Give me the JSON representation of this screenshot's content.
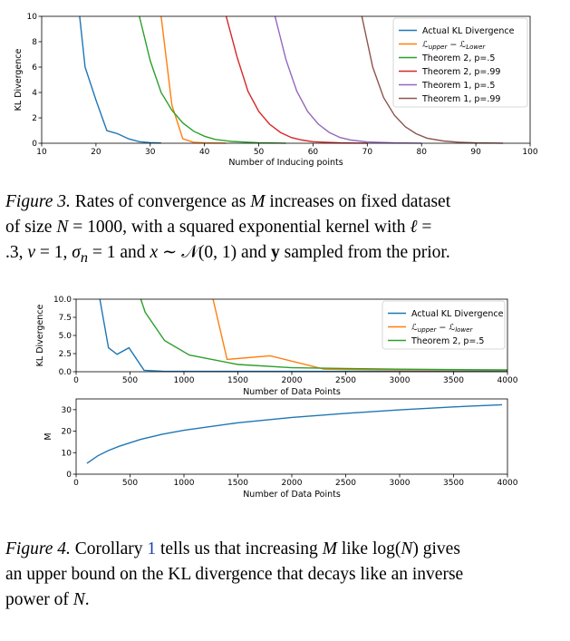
{
  "chart_data": [
    {
      "type": "line",
      "xlabel": "Number of Inducing points",
      "ylabel": "KL Divergence",
      "xlim": [
        10,
        100
      ],
      "ylim": [
        0,
        10
      ],
      "xticks": [
        10,
        20,
        30,
        40,
        50,
        60,
        70,
        80,
        90,
        100
      ],
      "yticks": [
        0,
        2,
        4,
        6,
        8,
        10
      ],
      "legend_position": "top-right",
      "series": [
        {
          "name": "Actual KL Divergence",
          "color": "#1f77b4",
          "x": [
            17,
            18,
            20,
            22,
            24,
            26,
            28,
            30,
            32
          ],
          "y": [
            10,
            6.0,
            3.4,
            1.0,
            0.75,
            0.35,
            0.12,
            0.05,
            0.02
          ]
        },
        {
          "name": "$\\mathcal{L}_{upper} - \\mathcal{L}_{Lower}$",
          "color": "#ff7f0e",
          "x": [
            32,
            34,
            36,
            38,
            40,
            44
          ],
          "y": [
            10,
            3.0,
            0.35,
            0.08,
            0.03,
            0.01
          ]
        },
        {
          "name": "Theorem 2, p=.5",
          "color": "#2ca02c",
          "x": [
            28,
            30,
            32,
            34,
            36,
            38,
            40,
            42,
            45,
            50,
            55
          ],
          "y": [
            10,
            6.5,
            4.0,
            2.6,
            1.6,
            0.95,
            0.55,
            0.3,
            0.14,
            0.04,
            0.01
          ]
        },
        {
          "name": "Theorem 2, p=.99",
          "color": "#d62728",
          "x": [
            44,
            46,
            48,
            50,
            52,
            54,
            56,
            58,
            60,
            65,
            70
          ],
          "y": [
            10,
            6.8,
            4.1,
            2.5,
            1.5,
            0.85,
            0.45,
            0.25,
            0.12,
            0.03,
            0.01
          ]
        },
        {
          "name": "Theorem 1, p=.5",
          "color": "#9467bd",
          "x": [
            53,
            55,
            57,
            59,
            61,
            63,
            65,
            67,
            70,
            75,
            80
          ],
          "y": [
            10,
            6.6,
            4.1,
            2.5,
            1.5,
            0.85,
            0.45,
            0.25,
            0.1,
            0.03,
            0.01
          ]
        },
        {
          "name": "Theorem 1, p=.99",
          "color": "#8c564b",
          "x": [
            69,
            71,
            73,
            75,
            77,
            79,
            81,
            84,
            87,
            90,
            95
          ],
          "y": [
            10,
            6.0,
            3.6,
            2.2,
            1.3,
            0.75,
            0.4,
            0.18,
            0.08,
            0.03,
            0.01
          ]
        }
      ]
    },
    {
      "type": "line",
      "xlabel": "Number of Data Points",
      "ylabel": "KL Divergence",
      "xlim": [
        0,
        4000
      ],
      "ylim": [
        0,
        10
      ],
      "xticks": [
        0,
        500,
        1000,
        1500,
        2000,
        2500,
        3000,
        3500,
        4000
      ],
      "yticks": [
        0.0,
        2.5,
        5.0,
        7.5,
        10.0
      ],
      "ytick_labels": [
        "0.0",
        "2.5",
        "5.0",
        "7.5",
        "10.0"
      ],
      "legend_position": "top-right",
      "series": [
        {
          "name": "Actual KL Divergence",
          "color": "#1f77b4",
          "x": [
            220,
            300,
            380,
            490,
            630,
            800,
            1500,
            2500,
            4000
          ],
          "y": [
            10,
            3.3,
            2.4,
            3.3,
            0.2,
            0.08,
            0.05,
            0.05,
            0.05
          ]
        },
        {
          "name": "$\\mathcal{L}_{upper} - \\mathcal{L}_{lower}$",
          "color": "#ff7f0e",
          "x": [
            1270,
            1400,
            1800,
            2300,
            2500,
            3000,
            4000
          ],
          "y": [
            10,
            1.7,
            2.2,
            0.35,
            0.3,
            0.25,
            0.2
          ]
        },
        {
          "name": "Theorem 2, p=.5",
          "color": "#2ca02c",
          "x": [
            600,
            640,
            820,
            1050,
            1500,
            2000,
            3000,
            4000
          ],
          "y": [
            10,
            8.2,
            4.3,
            2.3,
            1.0,
            0.55,
            0.35,
            0.25
          ]
        }
      ]
    },
    {
      "type": "line",
      "xlabel": "Number of Data Points",
      "ylabel": "M",
      "xlim": [
        0,
        4000
      ],
      "ylim": [
        0,
        35
      ],
      "xticks": [
        0,
        500,
        1000,
        1500,
        2000,
        2500,
        3000,
        3500,
        4000
      ],
      "yticks": [
        0,
        10,
        20,
        30
      ],
      "series": [
        {
          "name": "M",
          "color": "#1f77b4",
          "x": [
            100,
            200,
            300,
            400,
            600,
            800,
            1000,
            1500,
            2000,
            2500,
            3000,
            3500,
            3950
          ],
          "y": [
            5,
            8.5,
            11,
            13,
            16.2,
            18.6,
            20.4,
            23.9,
            26.4,
            28.3,
            29.9,
            31.3,
            32.3
          ]
        }
      ]
    }
  ],
  "caption3": {
    "label": "Figure 3.",
    "line1": "Rates of convergence as",
    "M": "M",
    "line1b": "increases on fixed dataset",
    "line2a": "of size",
    "N": "N",
    "eq1000": "= 1000, with a squared exponential kernel with",
    "ell": "ℓ",
    "eq": "=",
    "line3a": ".3,",
    "v": "v",
    "line3b": "= 1,",
    "sigma": "σ",
    "sub_n": "n",
    "line3c": "= 1 and",
    "x": "x",
    "sim": "∼",
    "calN": "𝒩",
    "dist": "(0, 1) and",
    "y": "y",
    "line3d": "sampled from the prior."
  },
  "caption4": {
    "label": "Figure 4.",
    "text1": "Corollary",
    "ref": "1",
    "text2": "tells us that increasing",
    "M": "M",
    "text3": "like",
    "log": "log(",
    "N": "N",
    "close": ")",
    "text4": "gives",
    "line2": "an upper bound on the KL divergence that decays like an inverse",
    "line3a": "power of",
    "N2": "N",
    "dot": "."
  }
}
